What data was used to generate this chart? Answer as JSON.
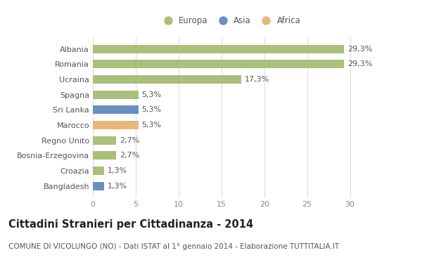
{
  "countries": [
    "Albania",
    "Romania",
    "Ucraina",
    "Spagna",
    "Sri Lanka",
    "Marocco",
    "Regno Unito",
    "Bosnia-Erzegovina",
    "Croazia",
    "Bangladesh"
  ],
  "values": [
    29.3,
    29.3,
    17.3,
    5.3,
    5.3,
    5.3,
    2.7,
    2.7,
    1.3,
    1.3
  ],
  "labels": [
    "29,3%",
    "29,3%",
    "17,3%",
    "5,3%",
    "5,3%",
    "5,3%",
    "2,7%",
    "2,7%",
    "1,3%",
    "1,3%"
  ],
  "continents": [
    "Europa",
    "Europa",
    "Europa",
    "Europa",
    "Asia",
    "Africa",
    "Europa",
    "Europa",
    "Europa",
    "Asia"
  ],
  "colors": {
    "Europa": "#a8c07a",
    "Asia": "#6b8fbf",
    "Africa": "#e8b87a"
  },
  "xlim": [
    0,
    32
  ],
  "xticks": [
    0,
    5,
    10,
    15,
    20,
    25,
    30
  ],
  "title": "Cittadini Stranieri per Cittadinanza - 2014",
  "subtitle": "COMUNE DI VICOLUNGO (NO) - Dati ISTAT al 1° gennaio 2014 - Elaborazione TUTTITALIA.IT",
  "bg_color": "#ffffff",
  "bar_height": 0.55,
  "title_fontsize": 10.5,
  "subtitle_fontsize": 7.5,
  "label_fontsize": 8,
  "tick_fontsize": 8,
  "legend_fontsize": 8.5
}
